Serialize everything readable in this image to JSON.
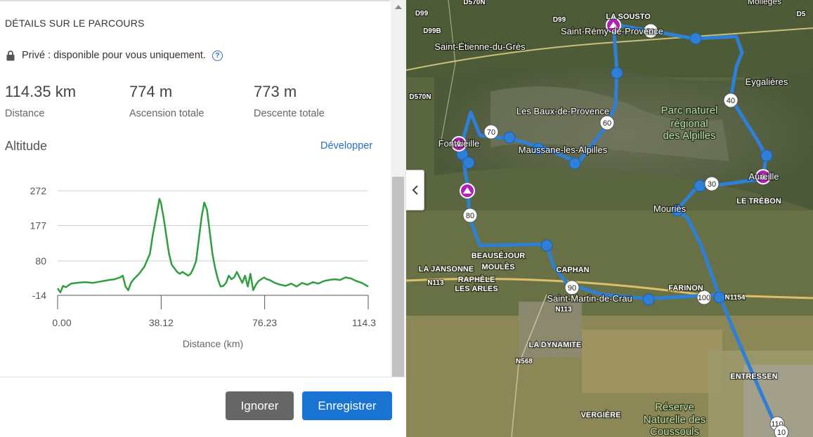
{
  "panel": {
    "section_title": "DÉTAILS SUR LE PARCOURS",
    "privacy_text": "Privé : disponible pour vous uniquement.",
    "help_glyph": "?",
    "stats": [
      {
        "value": "114.35 km",
        "label": "Distance"
      },
      {
        "value": "774 m",
        "label": "Ascension totale"
      },
      {
        "value": "773 m",
        "label": "Descente totale"
      }
    ],
    "altitude_title": "Altitude",
    "expand_link": "Développer",
    "icons": {
      "lock": "lock-icon",
      "help": "help-circle-icon",
      "collapse": "chevron-left-icon"
    }
  },
  "chart_data": {
    "type": "line",
    "title": "",
    "xlabel": "Distance (km)",
    "ylabel": "",
    "xlim": [
      0,
      114.35
    ],
    "ylim": [
      -14,
      272
    ],
    "x_ticks": [
      "0.00",
      "38.12",
      "76.23",
      "114.3"
    ],
    "x_tick_values": [
      0,
      38.12,
      76.23,
      114.35
    ],
    "y_ticks": [
      "272",
      "177",
      "80",
      "-14"
    ],
    "y_tick_values": [
      272,
      177,
      80,
      -14
    ],
    "grid": true,
    "line_color": "#2e9e3e",
    "series": [
      {
        "x": [
          0,
          1,
          2,
          3,
          5,
          7,
          10,
          13,
          16,
          19,
          21,
          23,
          24,
          25,
          26,
          27,
          28,
          30,
          32,
          34,
          35,
          36,
          37,
          37.5,
          38,
          39,
          40,
          41,
          42,
          43,
          44,
          45,
          46,
          48,
          49,
          50,
          51,
          52,
          53,
          54,
          55,
          56,
          57,
          58,
          59,
          60,
          61,
          62,
          63,
          64,
          65,
          66,
          67,
          68,
          69,
          70,
          71,
          72,
          73,
          74,
          75,
          76,
          77,
          78,
          80,
          82,
          84,
          86,
          88,
          90,
          92,
          94,
          96,
          98,
          100,
          102,
          104,
          106,
          108,
          110,
          112,
          114.35
        ],
        "y": [
          5,
          -6,
          12,
          8,
          18,
          20,
          22,
          20,
          24,
          28,
          30,
          35,
          40,
          10,
          0,
          20,
          30,
          45,
          65,
          100,
          150,
          190,
          230,
          250,
          240,
          200,
          150,
          100,
          70,
          60,
          50,
          45,
          50,
          40,
          45,
          60,
          80,
          140,
          200,
          240,
          220,
          160,
          100,
          60,
          30,
          10,
          12,
          20,
          40,
          30,
          35,
          50,
          35,
          20,
          40,
          10,
          45,
          0,
          15,
          25,
          30,
          35,
          30,
          28,
          20,
          15,
          12,
          18,
          10,
          20,
          15,
          22,
          18,
          25,
          28,
          30,
          28,
          35,
          32,
          25,
          20,
          10
        ]
      }
    ]
  },
  "footer": {
    "ignore_label": "Ignorer",
    "save_label": "Enregistrer"
  },
  "map": {
    "labels": [
      "D99",
      "D570N",
      "D99",
      "LA SOUSTO",
      "Saint-Rémy-de-Provence",
      "Mollèges",
      "D99B",
      "Saint-Étienne-du-Grès",
      "D570N",
      "Eygalières",
      "Les Baux-de-Provence",
      "Parc naturel",
      "régional",
      "des Alpilles",
      "Fontvieille",
      "Maussane-les-Alpilles",
      "Aureille",
      "LE TRÉBON",
      "Mouriès",
      "BEAUSÉJOUR",
      "MOULÈS",
      "LA JANSONNE",
      "RAPHÈLE",
      "LES ARLES",
      "N113",
      "CAPHAN",
      "Saint-Martin-de-Crau",
      "N113",
      "FARINON",
      "LA DYNAMITE",
      "N568",
      "ENTRESSEN",
      "Réserve",
      "Naturelle des",
      "Coussouls",
      "VERGIÈRE",
      "D5",
      "N1154"
    ],
    "distance_markers": [
      "50",
      "40",
      "60",
      "70",
      "30",
      "80",
      "90",
      "100",
      "110",
      "10"
    ],
    "route_color": "#2f7fd6",
    "poi_color": "#b320b8"
  }
}
